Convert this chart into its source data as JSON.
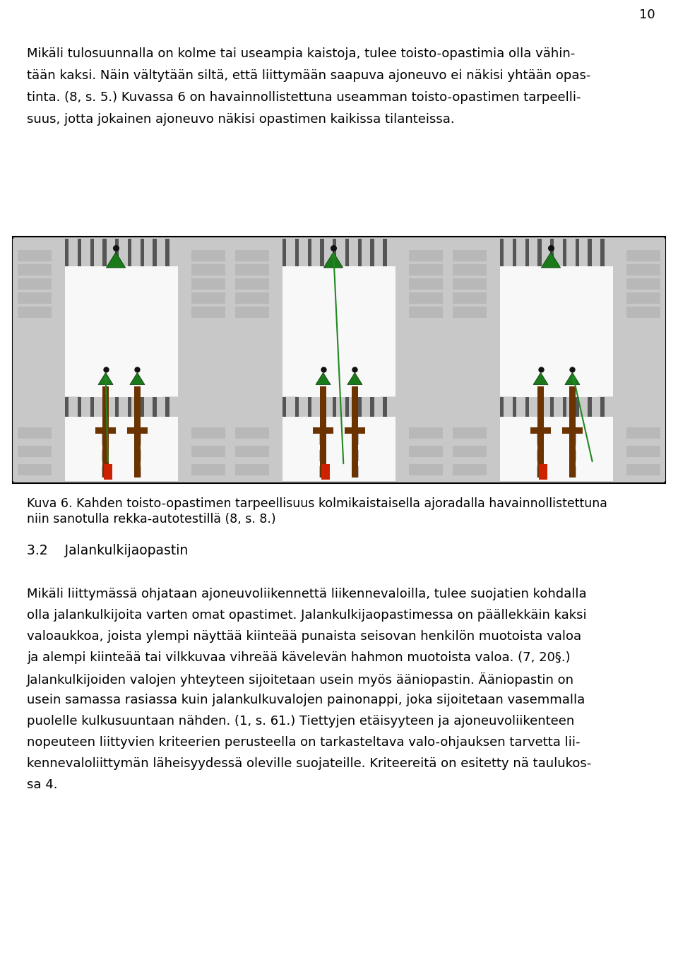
{
  "page_number": "10",
  "p1_lines": [
    "Mikäli tulosuunnalla on kolme tai useampia kaistoja, tulee toisto-opastimia olla vähin-",
    "tään kaksi. Näin vältytään siltä, että liittymään saapuva ajoneuvo ei näkisi yhtään opas-",
    "tinta. (8, s. 5.) Kuvassa 6 on havainnollistettuna useamman toisto-opastimen tarpeelli-",
    "suus, jotta jokainen ajoneuvo näkisi opastimen kaikissa tilanteissa."
  ],
  "caption_lines": [
    "Kuva 6. Kahden toisto-opastimen tarpeellisuus kolmikaistaisella ajoradalla havainnollistettuna",
    "niin sanotulla rekka-autotestillä (8, s. 8.)"
  ],
  "section_heading": "3.2    Jalankulkijaopastin",
  "p2_lines": [
    "Mikäli liittymässä ohjataan ajoneuvoliikennettä liikennevaloilla, tulee suojatien kohdalla",
    "olla jalankulkijoita varten omat opastimet. Jalankulkijaopastimessa on päällekkäin kaksi",
    "valoaukkoa, joista ylempi näyttää kiinteää punaista seisovan henkilön muotoista valoa",
    "ja alempi kiinteää tai vilkkuvaa vihreää kävelevän hahmon muotoista valoa. (7, 20§.)",
    "Jalankulkijoiden valojen yhteyteen sijoitetaan usein myös ääniopastin. Ääniopastin on",
    "usein samassa rasiassa kuin jalankulkuvalojen painonappi, joka sijoitetaan vasemmalla",
    "puolelle kulkusuuntaan nähden. (1, s. 61.) Tiettyjen etäisyyteen ja ajoneuvoliikenteen",
    "nopeuteen liittyvien kriteerien perusteella on tarkasteltava valo-ohjauksen tarvetta lii-",
    "kennevaloliittymän läheisyydessä oleville suojateille. Kriteereitä on esitetty nä taulukos-",
    "sa 4."
  ],
  "bg_color": "#ffffff",
  "road_gray": "#c8c8c8",
  "road_white": "#f8f8f8",
  "road_dark_gray": "#b0b0b0",
  "sidewalk_gray": "#d0d0d0",
  "stripe_dark": "#666666",
  "pole_color": "#6b3300",
  "signal_green": "#1a7a1a",
  "signal_red": "#cc2200",
  "dot_color": "#111111",
  "line_green": "#228822"
}
